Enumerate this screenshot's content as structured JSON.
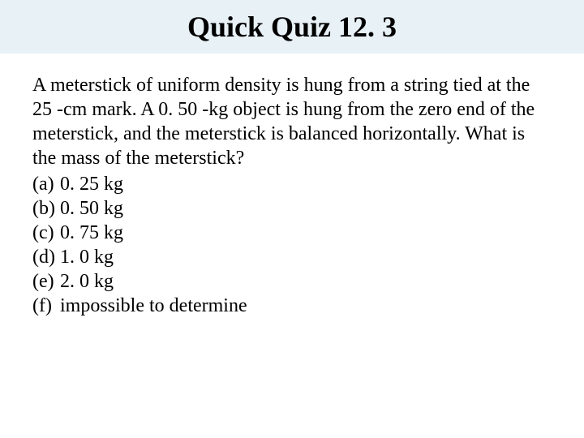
{
  "title": "Quick Quiz 12. 3",
  "question": "A meterstick of uniform density is hung from a string tied at the 25 -cm mark. A 0. 50 -kg object is hung from the zero end of the meterstick, and the meterstick is balanced horizontally. What is the mass of the meterstick?",
  "options": [
    {
      "label": "(a)",
      "text": "0. 25 kg"
    },
    {
      "label": "(b)",
      "text": "0. 50 kg"
    },
    {
      "label": "(c)",
      "text": "0. 75 kg"
    },
    {
      "label": "(d)",
      "text": "1. 0 kg"
    },
    {
      "label": "(e)",
      "text": "2. 0 kg"
    },
    {
      "label": "(f)",
      "text": "impossible to determine"
    }
  ],
  "colors": {
    "title_bg": "#e8f1f6",
    "text": "#000000",
    "page_bg": "#ffffff"
  },
  "typography": {
    "title_fontsize": 36,
    "body_fontsize": 24,
    "font_family": "Times New Roman"
  }
}
